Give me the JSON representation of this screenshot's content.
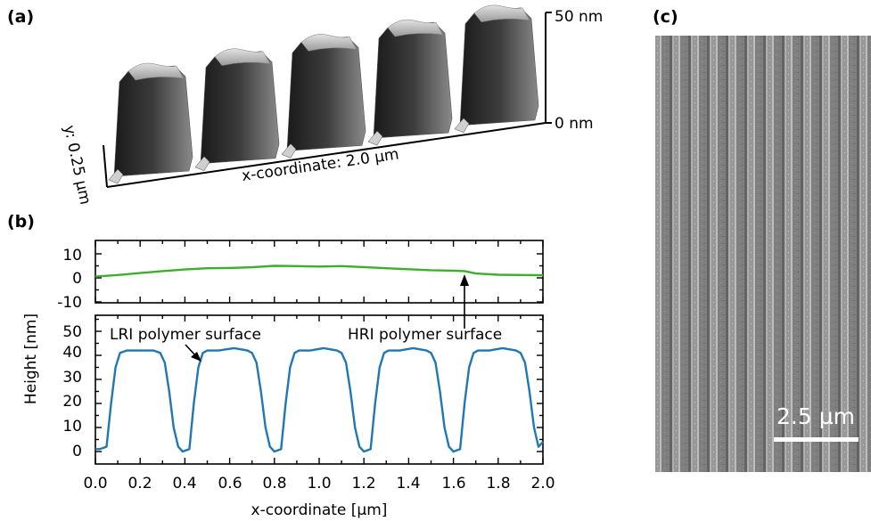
{
  "panels": {
    "a": {
      "label": "(a)",
      "z_top_label": "50 nm",
      "z_bottom_label": "0 nm",
      "x_axis_label": "x-coordinate: 2.0 µm",
      "y_axis_label": "y: 0.25 µm"
    },
    "b": {
      "label": "(b)"
    },
    "c": {
      "label": "(c)",
      "scale_bar_label": "2.5 µm"
    }
  },
  "chart_data": {
    "type": "line",
    "xlabel": "x-coordinate [µm]",
    "ylabel": "Height [nm]",
    "xlim": [
      0.0,
      2.0
    ],
    "xticks": [
      "0.0",
      "0.2",
      "0.4",
      "0.6",
      "0.8",
      "1.0",
      "1.2",
      "1.4",
      "1.6",
      "1.8",
      "2.0"
    ],
    "colors": {
      "top_series": "#3cb02c",
      "bottom_series": "#1f77b4"
    },
    "subplots": [
      {
        "position": "top",
        "ylim": [
          -10,
          15
        ],
        "yticks": [
          "10",
          "0",
          "-10"
        ],
        "series": [
          {
            "x": [
              0.0,
              0.1,
              0.2,
              0.3,
              0.4,
              0.5,
              0.6,
              0.7,
              0.8,
              0.9,
              1.0,
              1.1,
              1.2,
              1.3,
              1.4,
              1.5,
              1.6,
              1.65,
              1.7,
              1.8,
              1.9,
              2.0
            ],
            "values": [
              0.5,
              1.2,
              2.0,
              2.8,
              3.5,
              4.0,
              4.1,
              4.4,
              5.0,
              4.9,
              4.7,
              4.9,
              4.5,
              4.0,
              3.6,
              3.2,
              3.0,
              2.8,
              1.8,
              1.3,
              1.2,
              1.1
            ]
          }
        ],
        "annotation": "HRI polymer surface"
      },
      {
        "position": "bottom",
        "ylim": [
          -3,
          57
        ],
        "yticks": [
          "50",
          "40",
          "30",
          "20",
          "10",
          "0"
        ],
        "series": [
          {
            "x": [
              0.0,
              0.02,
              0.05,
              0.07,
              0.09,
              0.11,
              0.14,
              0.2,
              0.26,
              0.29,
              0.31,
              0.33,
              0.35,
              0.37,
              0.39,
              0.42,
              0.44,
              0.46,
              0.48,
              0.5,
              0.52,
              0.55,
              0.62,
              0.68,
              0.7,
              0.72,
              0.74,
              0.76,
              0.78,
              0.8,
              0.83,
              0.85,
              0.87,
              0.89,
              0.91,
              0.93,
              0.96,
              1.02,
              1.08,
              1.1,
              1.12,
              1.14,
              1.16,
              1.18,
              1.2,
              1.23,
              1.25,
              1.27,
              1.29,
              1.31,
              1.33,
              1.36,
              1.42,
              1.48,
              1.5,
              1.52,
              1.54,
              1.56,
              1.58,
              1.6,
              1.63,
              1.65,
              1.67,
              1.69,
              1.71,
              1.73,
              1.76,
              1.82,
              1.88,
              1.9,
              1.92,
              1.94,
              1.96,
              1.98,
              2.0
            ],
            "values": [
              1,
              1,
              2,
              20,
              35,
              41,
              42,
              42,
              42,
              41,
              37,
              25,
              10,
              2,
              0,
              1,
              20,
              35,
              41,
              42,
              42,
              42,
              43,
              42,
              41,
              37,
              25,
              10,
              2,
              0,
              1,
              20,
              35,
              41,
              42,
              42,
              42,
              43,
              42,
              41,
              37,
              25,
              10,
              2,
              0,
              1,
              20,
              35,
              41,
              42,
              42,
              42,
              43,
              42,
              41,
              37,
              25,
              10,
              2,
              0,
              1,
              20,
              35,
              41,
              42,
              42,
              42,
              43,
              42,
              41,
              37,
              25,
              10,
              2,
              4
            ]
          }
        ],
        "annotation": "LRI polymer surface"
      }
    ]
  }
}
